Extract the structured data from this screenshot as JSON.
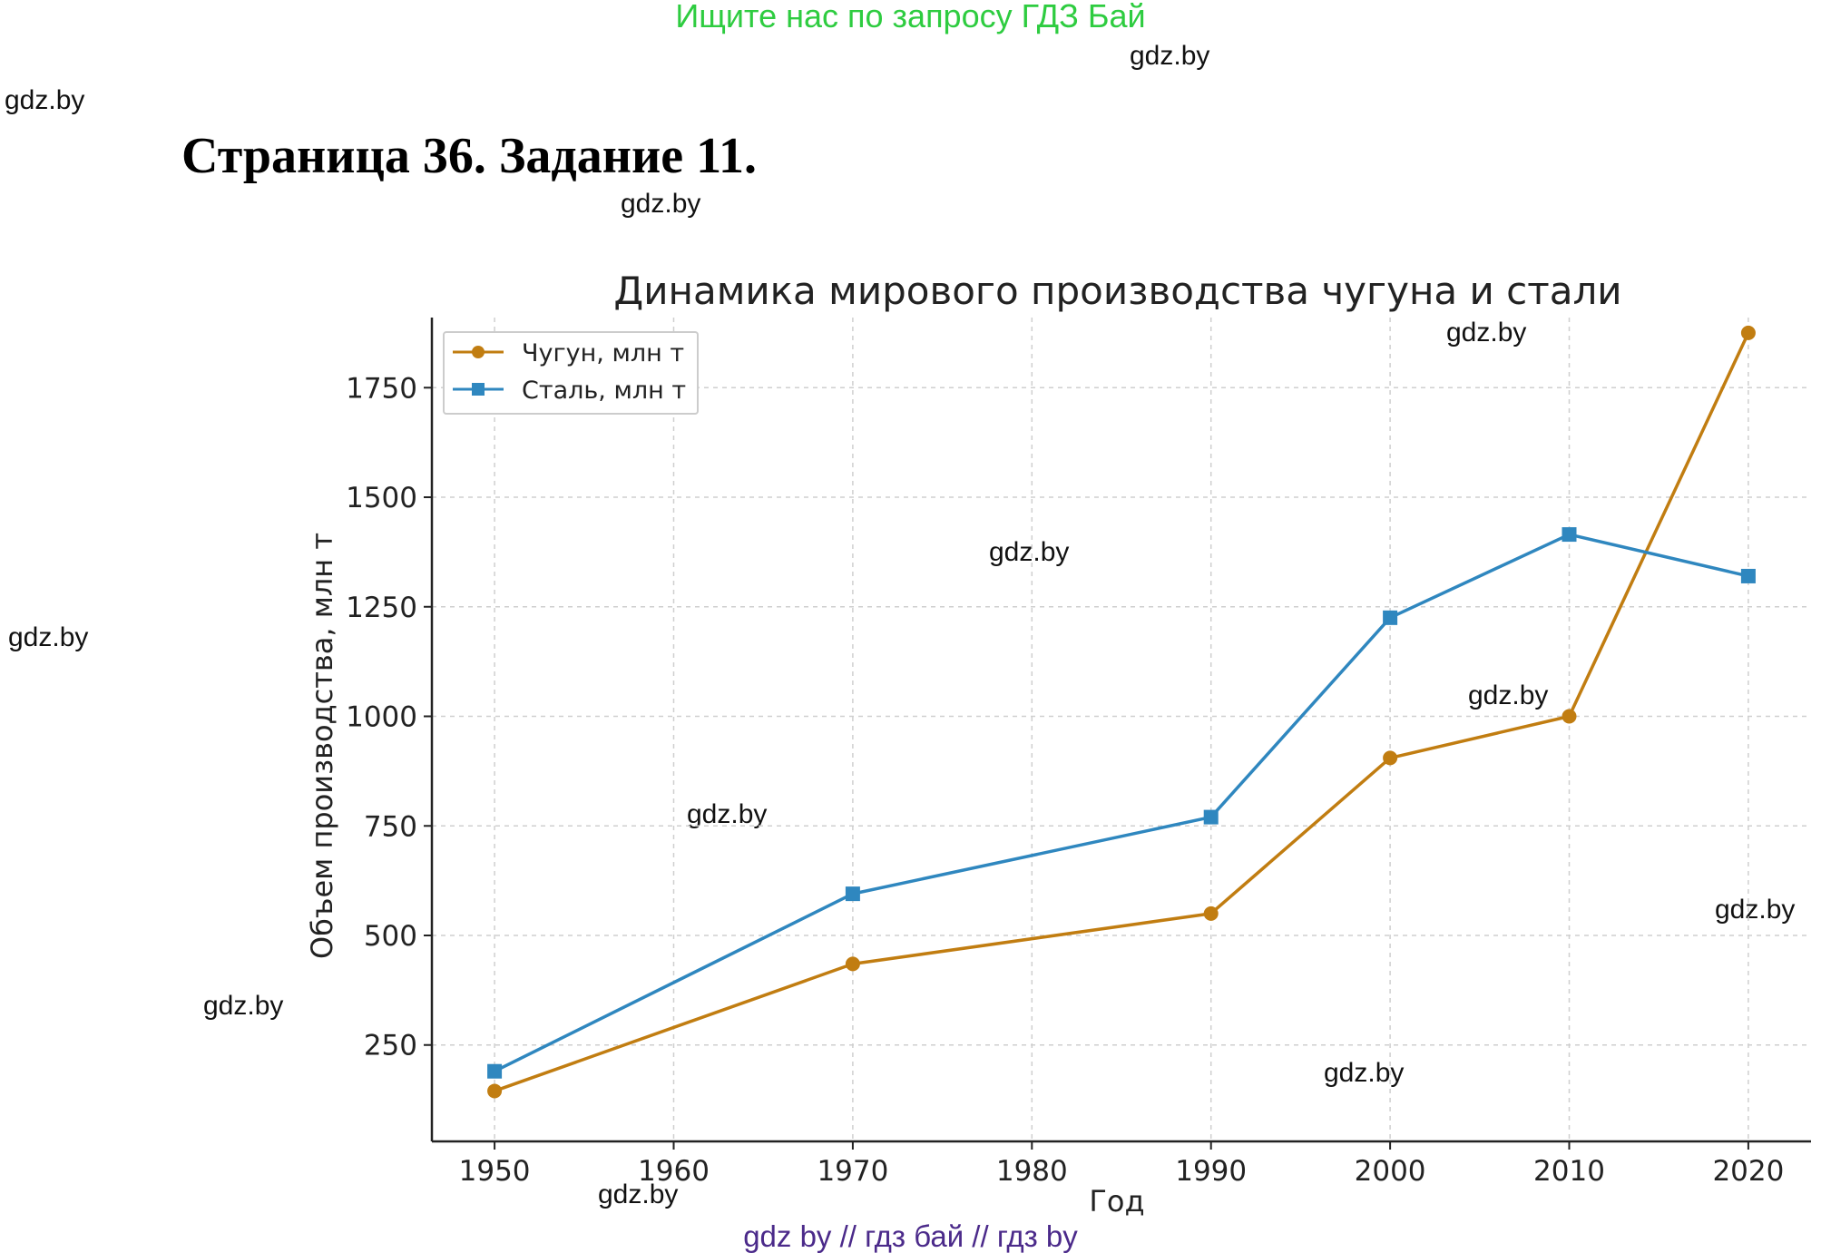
{
  "banner": "Ищите нас по запросу ГДЗ Бай",
  "heading": "Страница 36. Задание 11.",
  "footer": "gdz by  //  гдз бай  //  гдз by",
  "watermarks": [
    "gdz.by",
    "gdz.by",
    "gdz.by",
    "gdz.by",
    "gdz.by",
    "gdz.by",
    "gdz.by",
    "gdz.by",
    "gdz.by",
    "gdz.by",
    "gdz.by",
    "gdz.by"
  ],
  "chart_data": {
    "type": "line",
    "title": "Динамика мирового производства чугуна и стали",
    "xlabel": "Год",
    "ylabel": "Объем производства, млн т",
    "xlim": [
      1946.5,
      2023.5
    ],
    "ylim": [
      30,
      1910
    ],
    "x_ticks": [
      1950,
      1960,
      1970,
      1980,
      1990,
      2000,
      2010,
      2020
    ],
    "y_ticks": [
      250,
      500,
      750,
      1000,
      1250,
      1500,
      1750
    ],
    "grid": true,
    "grid_style": "dashed",
    "legend_position": "top-left",
    "series": [
      {
        "name": "Чугун, млн т",
        "color": "#c17d11",
        "marker": "circle",
        "x": [
          1950,
          1970,
          1990,
          2000,
          2010,
          2020
        ],
        "y": [
          145,
          435,
          550,
          905,
          1000,
          1875
        ]
      },
      {
        "name": "Сталь, млн т",
        "color": "#2f87bf",
        "marker": "square",
        "x": [
          1950,
          1970,
          1990,
          2000,
          2010,
          2020
        ],
        "y": [
          190,
          595,
          770,
          1225,
          1415,
          1320
        ]
      }
    ]
  }
}
